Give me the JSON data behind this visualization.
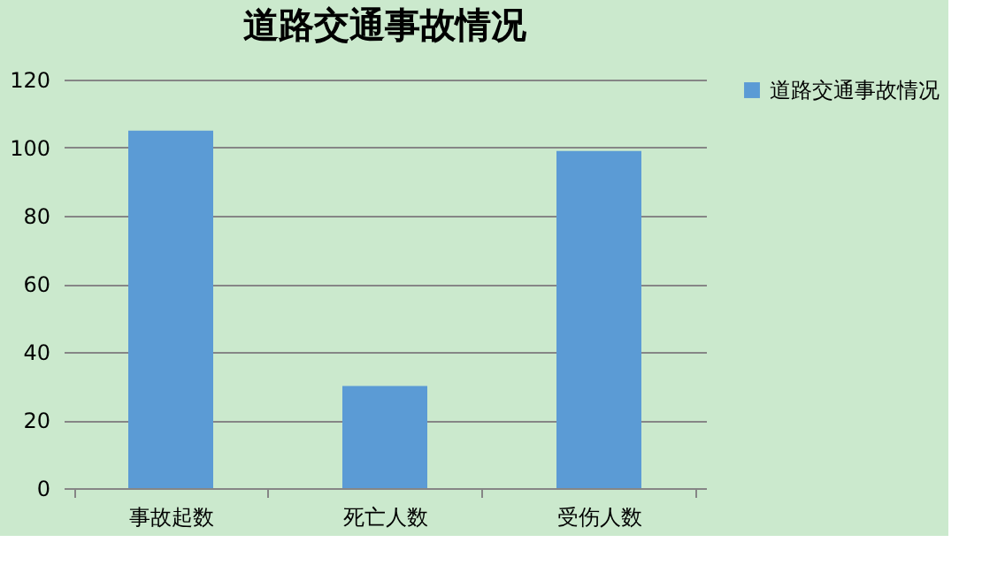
{
  "chart_data": {
    "type": "bar",
    "title": "道路交通事故情况",
    "categories": [
      "事故起数",
      "死亡人数",
      "受伤人数"
    ],
    "series": [
      {
        "name": "道路交通事故情况",
        "color": "#5b9bd5",
        "values": [
          105,
          30,
          99
        ]
      }
    ],
    "ylim": [
      0,
      120
    ],
    "yticks": [
      0,
      20,
      40,
      60,
      80,
      100,
      120
    ],
    "grid": "y",
    "legend": "right"
  }
}
